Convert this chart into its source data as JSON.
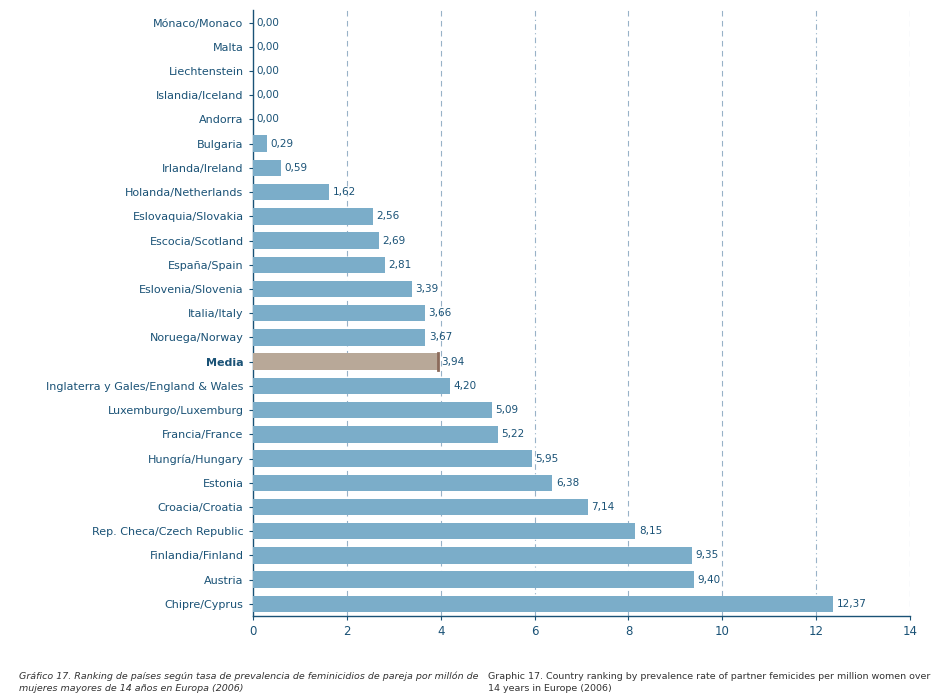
{
  "categories": [
    "Chipre/Cyprus",
    "Austria",
    "Finlandia/Finland",
    "Rep. Checa/Czech Republic",
    "Croacia/Croatia",
    "Estonia",
    "Hungría/Hungary",
    "Francia/France",
    "Luxemburgo/Luxemburg",
    "Inglaterra y Gales/England & Wales",
    "Media",
    "Noruega/Norway",
    "Italia/Italy",
    "Eslovenia/Slovenia",
    "España/Spain",
    "Escocia/Scotland",
    "Eslovaquia/Slovakia",
    "Holanda/Netherlands",
    "Irlanda/Ireland",
    "Bulgaria",
    "Andorra",
    "Islandia/Iceland",
    "Liechtenstein",
    "Malta",
    "Mónaco/Monaco"
  ],
  "values": [
    12.37,
    9.4,
    9.35,
    8.15,
    7.14,
    6.38,
    5.95,
    5.22,
    5.09,
    4.2,
    3.94,
    3.67,
    3.66,
    3.39,
    2.81,
    2.69,
    2.56,
    1.62,
    0.59,
    0.29,
    0.0,
    0.0,
    0.0,
    0.0,
    0.0
  ],
  "bar_color": "#7badc9",
  "media_color": "#b8a898",
  "media_edge_color": "#8b6a5a",
  "text_color": "#1a5276",
  "label_color": "#1a5276",
  "axis_color": "#1a5276",
  "grid_color": "#7f9fba",
  "background_color": "#ffffff",
  "value_labels": [
    "12,37",
    "9,40",
    "9,35",
    "8,15",
    "7,14",
    "6,38",
    "5,95",
    "5,22",
    "5,09",
    "4,20",
    "3,94",
    "3,67",
    "3,66",
    "3,39",
    "2,81",
    "2,69",
    "2,56",
    "1,62",
    "0,59",
    "0,29",
    "0,00",
    "0,00",
    "0,00",
    "0,00",
    "0,00"
  ],
  "xlim": [
    0,
    14
  ],
  "xticks": [
    0,
    2,
    4,
    6,
    8,
    10,
    12,
    14
  ],
  "caption_es": "Gráfico 17. Ranking de países según tasa de prevalencia de feminicidios de pareja por millón de\nmujeres mayores de 14 años en Europa (2006)",
  "caption_en": "Graphic 17. Country ranking by prevalence rate of partner femicides per million women over\n14 years in Europe (2006)"
}
